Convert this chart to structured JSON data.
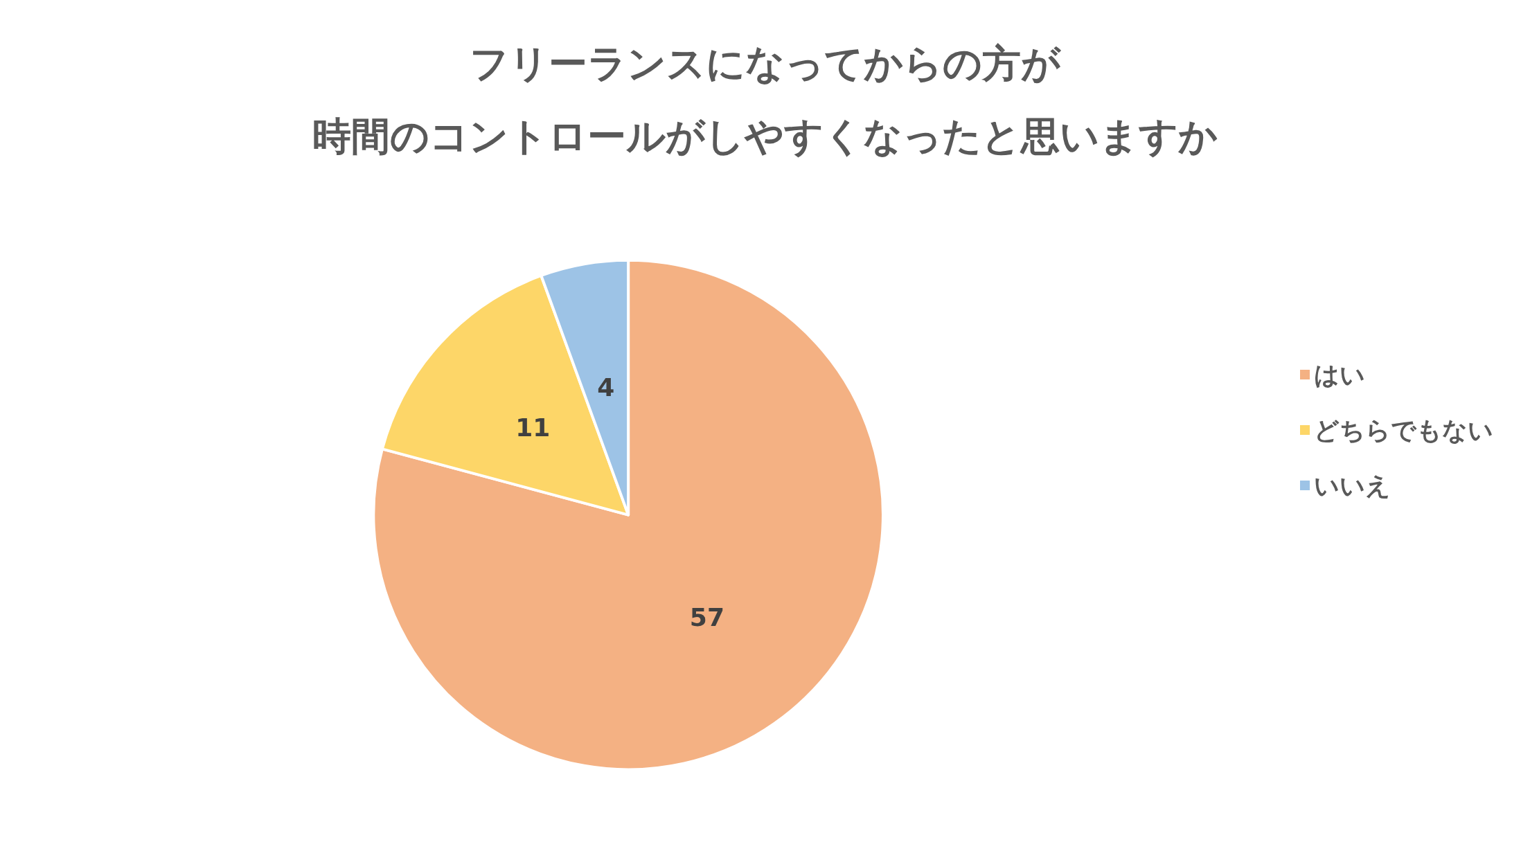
{
  "chart_data": {
    "type": "pie",
    "title": [
      "フリーランスになってからの方が",
      "時間のコントロールがしやすくなったと思いますか"
    ],
    "categories": [
      "はい",
      "どちらでもない",
      "いいえ"
    ],
    "values": [
      57,
      11,
      4
    ],
    "colors": [
      "#f4b183",
      "#fdd668",
      "#9dc3e6"
    ],
    "data_labels": true,
    "legend": "right"
  }
}
